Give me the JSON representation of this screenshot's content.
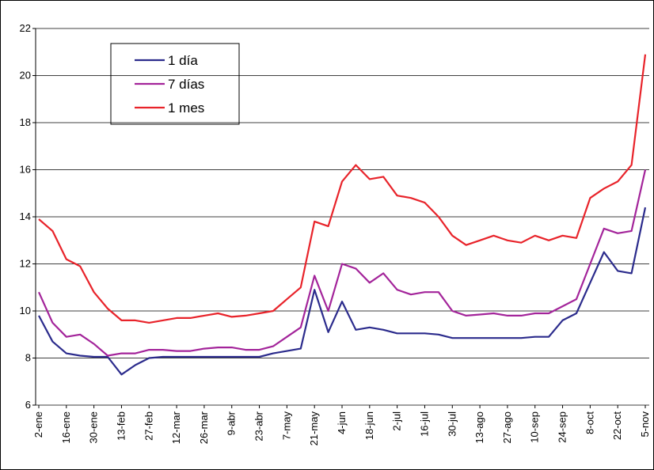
{
  "chart_data": {
    "type": "line",
    "x": [
      "2-ene",
      "9-ene",
      "16-ene",
      "23-ene",
      "30-ene",
      "6-feb",
      "13-feb",
      "20-feb",
      "27-feb",
      "5-mar",
      "12-mar",
      "19-mar",
      "26-mar",
      "2-abr",
      "9-abr",
      "16-abr",
      "23-abr",
      "30-abr",
      "7-may",
      "14-may",
      "21-may",
      "28-may",
      "4-jun",
      "11-jun",
      "18-jun",
      "25-jun",
      "2-jul",
      "9-jul",
      "16-jul",
      "23-jul",
      "30-jul",
      "6-ago",
      "13-ago",
      "20-ago",
      "27-ago",
      "3-sep",
      "10-sep",
      "17-sep",
      "24-sep",
      "1-oct",
      "8-oct",
      "15-oct",
      "22-oct",
      "29-oct",
      "5-nov"
    ],
    "xticks": [
      "2-ene",
      "16-ene",
      "30-ene",
      "13-feb",
      "27-feb",
      "12-mar",
      "26-mar",
      "9-abr",
      "23-abr",
      "7-may",
      "21-may",
      "4-jun",
      "18-jun",
      "2-jul",
      "16-jul",
      "30-jul",
      "13-ago",
      "27-ago",
      "10-sep",
      "24-sep",
      "8-oct",
      "22-oct",
      "5-nov"
    ],
    "ylim": [
      6,
      22
    ],
    "yticks": [
      6,
      8,
      10,
      12,
      14,
      16,
      18,
      20,
      22
    ],
    "grid": true,
    "legend": "upper-left",
    "series": [
      {
        "name": "1 día",
        "color": "#2b2b8c",
        "values": [
          9.8,
          8.7,
          8.2,
          8.1,
          8.05,
          8.05,
          7.3,
          7.7,
          8.0,
          8.05,
          8.05,
          8.05,
          8.05,
          8.05,
          8.05,
          8.05,
          8.05,
          8.2,
          8.3,
          8.4,
          10.9,
          9.1,
          10.4,
          9.2,
          9.3,
          9.2,
          9.05,
          9.05,
          9.05,
          9.0,
          8.85,
          8.85,
          8.85,
          8.85,
          8.85,
          8.85,
          8.9,
          8.9,
          9.6,
          9.9,
          11.2,
          12.5,
          11.7,
          11.6,
          14.4
        ]
      },
      {
        "name": "7 días",
        "color": "#a3249a",
        "values": [
          10.8,
          9.5,
          8.9,
          9.0,
          8.6,
          8.1,
          8.2,
          8.2,
          8.35,
          8.35,
          8.3,
          8.3,
          8.4,
          8.45,
          8.45,
          8.35,
          8.35,
          8.5,
          8.9,
          9.3,
          11.5,
          10.0,
          12.0,
          11.8,
          11.2,
          11.6,
          10.9,
          10.7,
          10.8,
          10.8,
          10.0,
          9.8,
          9.85,
          9.9,
          9.8,
          9.8,
          9.9,
          9.9,
          10.2,
          10.5,
          12.0,
          13.5,
          13.3,
          13.4,
          16.0
        ]
      },
      {
        "name": "1 mes",
        "color": "#e8232a",
        "values": [
          13.9,
          13.4,
          12.2,
          11.9,
          10.8,
          10.1,
          9.6,
          9.6,
          9.5,
          9.6,
          9.7,
          9.7,
          9.8,
          9.9,
          9.75,
          9.8,
          9.9,
          10.0,
          10.5,
          11.0,
          13.8,
          13.6,
          15.5,
          16.2,
          15.6,
          15.7,
          14.9,
          14.8,
          14.6,
          14.0,
          13.2,
          12.8,
          13.0,
          13.2,
          13.0,
          12.9,
          13.2,
          13.0,
          13.2,
          13.1,
          14.8,
          15.2,
          15.5,
          16.2,
          20.9
        ]
      }
    ]
  }
}
